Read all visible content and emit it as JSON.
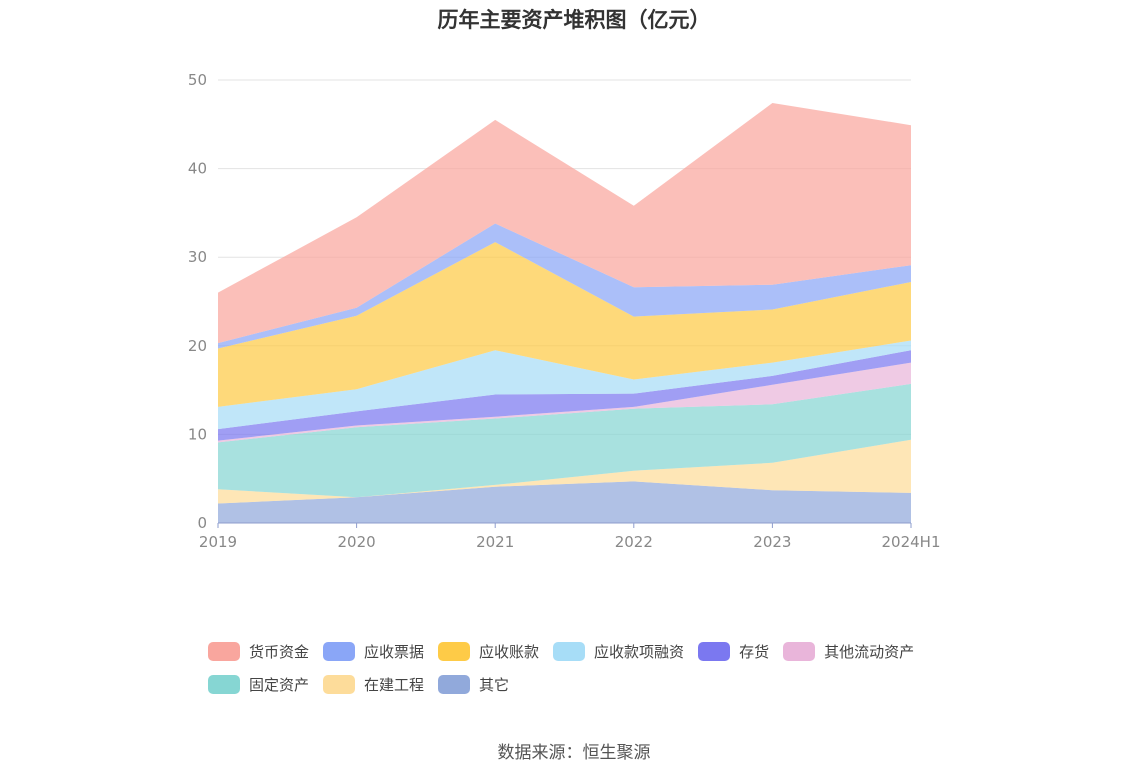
{
  "chart_data": {
    "type": "area",
    "stacked": true,
    "title": "历年主要资产堆积图（亿元）",
    "categories": [
      "2019",
      "2020",
      "2021",
      "2022",
      "2023",
      "2024H1"
    ],
    "yticks": [
      "0",
      "10",
      "20",
      "30",
      "40",
      "50"
    ],
    "ylim": [
      0,
      50
    ],
    "grid": true,
    "legend_position": "bottom",
    "series": [
      {
        "name": "其它",
        "color": "#91A9DB",
        "values": [
          2.2,
          2.9,
          4.1,
          4.7,
          3.7,
          3.4
        ]
      },
      {
        "name": "在建工程",
        "color": "#FDDC9A",
        "values": [
          1.6,
          0.0,
          0.2,
          1.2,
          3.1,
          6.0
        ]
      },
      {
        "name": "固定资产",
        "color": "#86D6D3",
        "values": [
          5.3,
          7.9,
          7.5,
          7.0,
          6.6,
          6.3
        ]
      },
      {
        "name": "其他流动资产",
        "color": "#E9B5DA",
        "values": [
          0.2,
          0.2,
          0.2,
          0.2,
          2.2,
          2.4
        ]
      },
      {
        "name": "存货",
        "color": "#7B78F0",
        "values": [
          1.3,
          1.6,
          2.5,
          1.5,
          1.0,
          1.4
        ]
      },
      {
        "name": "应收款项融资",
        "color": "#A7DDF7",
        "values": [
          2.5,
          2.5,
          5.0,
          1.6,
          1.5,
          1.1
        ]
      },
      {
        "name": "应收账款",
        "color": "#FECB47",
        "values": [
          6.6,
          8.3,
          12.2,
          7.1,
          6.0,
          6.6
        ]
      },
      {
        "name": "应收票据",
        "color": "#8AA6F7",
        "values": [
          0.6,
          0.9,
          2.1,
          3.3,
          2.8,
          1.9
        ]
      },
      {
        "name": "货币资金",
        "color": "#F9A69E",
        "values": [
          5.7,
          10.2,
          11.7,
          9.2,
          20.5,
          15.8
        ]
      }
    ]
  },
  "legend": {
    "rows": [
      [
        {
          "label": "货币资金",
          "color": "#F9A69E"
        },
        {
          "label": "应收票据",
          "color": "#8AA6F7"
        },
        {
          "label": "应收账款",
          "color": "#FECB47"
        },
        {
          "label": "应收款项融资",
          "color": "#A7DDF7"
        },
        {
          "label": "存货",
          "color": "#7B78F0"
        },
        {
          "label": "其他流动资产",
          "color": "#E9B5DA"
        }
      ],
      [
        {
          "label": "固定资产",
          "color": "#86D6D3"
        },
        {
          "label": "在建工程",
          "color": "#FDDC9A"
        },
        {
          "label": "其它",
          "color": "#91A9DB"
        }
      ]
    ]
  },
  "source": "数据来源：恒生聚源"
}
